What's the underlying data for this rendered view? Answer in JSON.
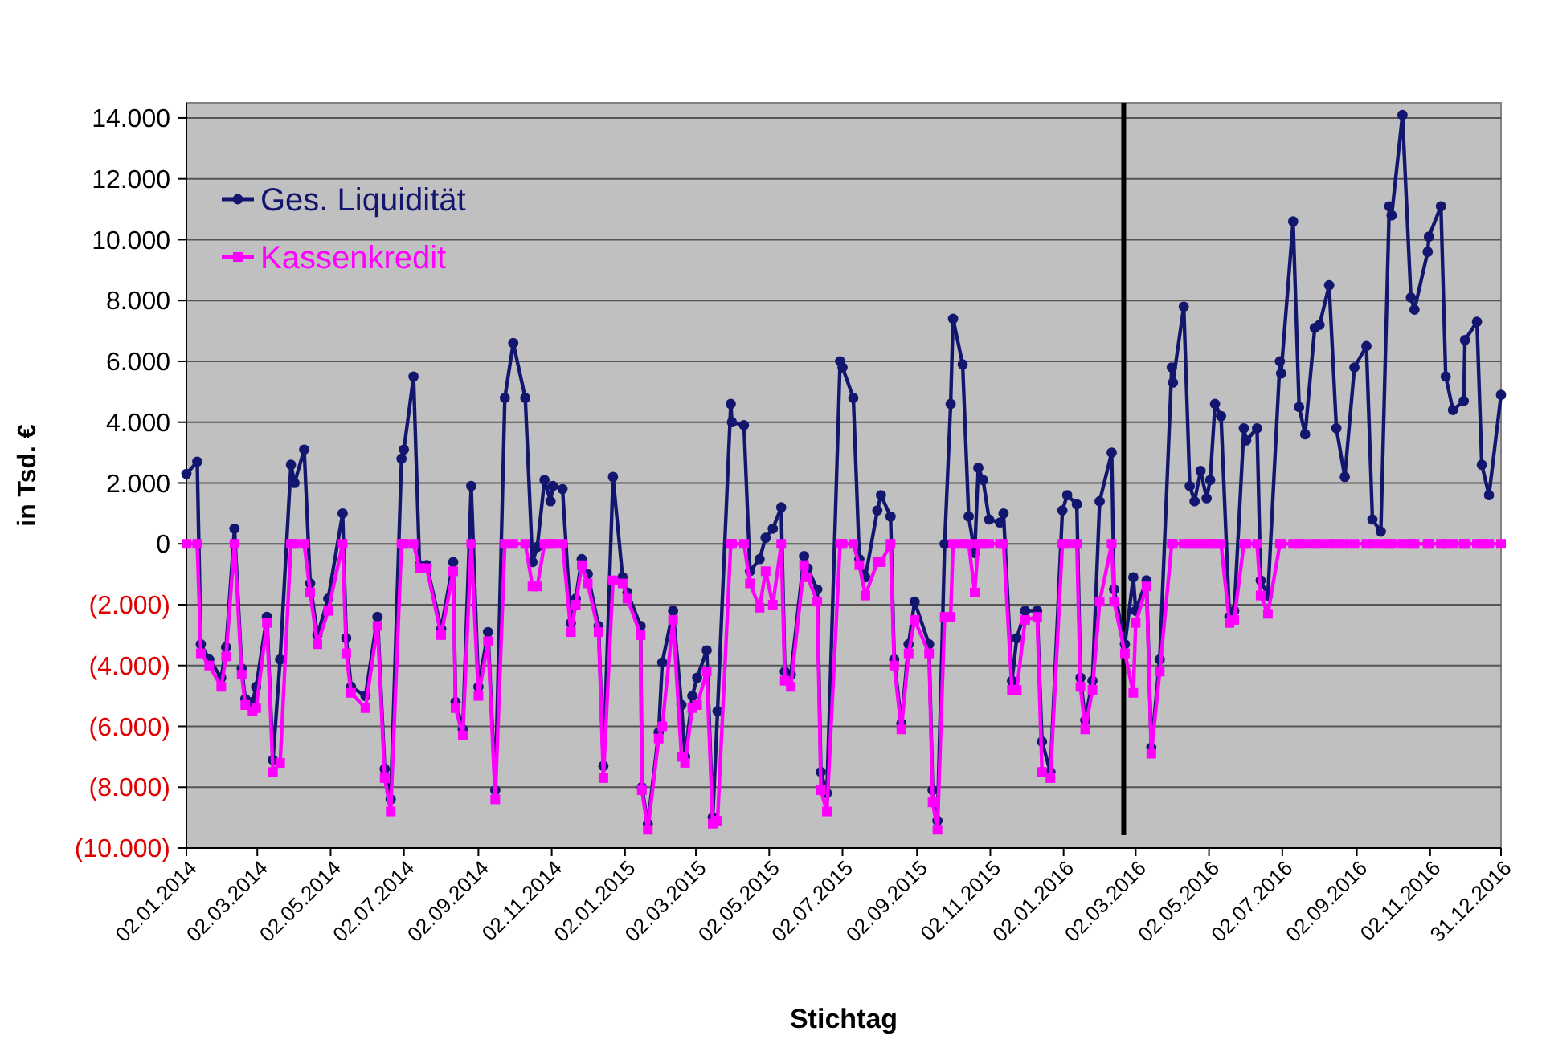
{
  "chart_data": {
    "type": "line",
    "xlabel": "Stichtag",
    "ylabel": "in Tsd. €",
    "xlim": [
      "2014-01-02",
      "2016-12-31"
    ],
    "ylim": [
      -10000,
      14500
    ],
    "xticks": [
      {
        "value": "2014-01-02",
        "label": "02.01.2014"
      },
      {
        "value": "2014-03-02",
        "label": "02.03.2014"
      },
      {
        "value": "2014-05-02",
        "label": "02.05.2014"
      },
      {
        "value": "2014-07-02",
        "label": "02.07.2014"
      },
      {
        "value": "2014-09-02",
        "label": "02.09.2014"
      },
      {
        "value": "2014-11-02",
        "label": "02.11.2014"
      },
      {
        "value": "2015-01-02",
        "label": "02.01.2015"
      },
      {
        "value": "2015-03-02",
        "label": "02.03.2015"
      },
      {
        "value": "2015-05-02",
        "label": "02.05.2015"
      },
      {
        "value": "2015-07-02",
        "label": "02.07.2015"
      },
      {
        "value": "2015-09-02",
        "label": "02.09.2015"
      },
      {
        "value": "2015-11-02",
        "label": "02.11.2015"
      },
      {
        "value": "2016-01-02",
        "label": "02.01.2016"
      },
      {
        "value": "2016-03-02",
        "label": "02.03.2016"
      },
      {
        "value": "2016-05-02",
        "label": "02.05.2016"
      },
      {
        "value": "2016-07-02",
        "label": "02.07.2016"
      },
      {
        "value": "2016-09-02",
        "label": "02.09.2016"
      },
      {
        "value": "2016-11-02",
        "label": "02.11.2016"
      },
      {
        "value": "2016-12-31",
        "label": "31.12.2016"
      }
    ],
    "yticks": [
      {
        "value": 14000,
        "label": "14.000"
      },
      {
        "value": 12000,
        "label": "12.000"
      },
      {
        "value": 10000,
        "label": "10.000"
      },
      {
        "value": 8000,
        "label": "8.000"
      },
      {
        "value": 6000,
        "label": "6.000"
      },
      {
        "value": 4000,
        "label": "4.000"
      },
      {
        "value": 2000,
        "label": "2.000"
      },
      0,
      {
        "value": -2000,
        "label": "(2.000)"
      },
      {
        "value": -4000,
        "label": "(4.000)"
      },
      {
        "value": -6000,
        "label": "(6.000)"
      },
      {
        "value": -8000,
        "label": "(8.000)"
      },
      {
        "value": -10000,
        "label": "(10.000)"
      }
    ],
    "grid": "y",
    "legend": "top left",
    "ref_lines": [
      {
        "axis": "x",
        "value": "2016-02-21",
        "color": "#000000"
      }
    ],
    "x": [
      "2014-01-02",
      "2014-01-11",
      "2014-01-14",
      "2014-01-21",
      "2014-01-31",
      "2014-02-04",
      "2014-02-11",
      "2014-02-17",
      "2014-02-20",
      "2014-02-26",
      "2014-03-01",
      "2014-03-10",
      "2014-03-15",
      "2014-03-21",
      "2014-03-30",
      "2014-04-02",
      "2014-04-10",
      "2014-04-15",
      "2014-04-21",
      "2014-04-30",
      "2014-05-12",
      "2014-05-15",
      "2014-05-19",
      "2014-05-31",
      "2014-06-10",
      "2014-06-16",
      "2014-06-21",
      "2014-06-30",
      "2014-07-02",
      "2014-07-10",
      "2014-07-15",
      "2014-07-21",
      "2014-08-02",
      "2014-08-12",
      "2014-08-14",
      "2014-08-20",
      "2014-08-27",
      "2014-09-02",
      "2014-09-10",
      "2014-09-16",
      "2014-09-24",
      "2014-10-01",
      "2014-10-11",
      "2014-10-17",
      "2014-10-21",
      "2014-10-27",
      "2014-11-01",
      "2014-11-03",
      "2014-11-11",
      "2014-11-18",
      "2014-11-22",
      "2014-11-27",
      "2014-12-02",
      "2014-12-11",
      "2014-12-15",
      "2014-12-23",
      "2014-12-31",
      "2015-01-04",
      "2015-01-15",
      "2015-01-16",
      "2015-01-21",
      "2015-01-30",
      "2015-02-02",
      "2015-02-11",
      "2015-02-18",
      "2015-02-21",
      "2015-02-27",
      "2015-03-03",
      "2015-03-11",
      "2015-03-16",
      "2015-03-20",
      "2015-03-31",
      "2015-04-01",
      "2015-04-11",
      "2015-04-16",
      "2015-04-24",
      "2015-04-29",
      "2015-05-05",
      "2015-05-12",
      "2015-05-15",
      "2015-05-20",
      "2015-05-31",
      "2015-06-03",
      "2015-06-11",
      "2015-06-14",
      "2015-06-19",
      "2015-06-30",
      "2015-07-02",
      "2015-07-11",
      "2015-07-16",
      "2015-07-21",
      "2015-07-31",
      "2015-08-03",
      "2015-08-11",
      "2015-08-14",
      "2015-08-20",
      "2015-08-26",
      "2015-08-31",
      "2015-09-12",
      "2015-09-15",
      "2015-09-19",
      "2015-09-25",
      "2015-09-30",
      "2015-10-02",
      "2015-10-10",
      "2015-10-15",
      "2015-10-20",
      "2015-10-23",
      "2015-10-27",
      "2015-11-01",
      "2015-11-10",
      "2015-11-13",
      "2015-11-20",
      "2015-11-24",
      "2015-12-01",
      "2015-12-11",
      "2015-12-15",
      "2015-12-22",
      "2016-01-01",
      "2016-01-05",
      "2016-01-13",
      "2016-01-16",
      "2016-01-20",
      "2016-01-26",
      "2016-02-01",
      "2016-02-11",
      "2016-02-13",
      "2016-02-22",
      "2016-02-29",
      "2016-03-02",
      "2016-03-11",
      "2016-03-15",
      "2016-03-22",
      "2016-04-01",
      "2016-04-02",
      "2016-04-11",
      "2016-04-16",
      "2016-04-20",
      "2016-04-25",
      "2016-04-30",
      "2016-05-03",
      "2016-05-07",
      "2016-05-12",
      "2016-05-19",
      "2016-05-23",
      "2016-05-31",
      "2016-06-02",
      "2016-06-11",
      "2016-06-14",
      "2016-06-20",
      "2016-06-30",
      "2016-07-01",
      "2016-07-11",
      "2016-07-16",
      "2016-07-21",
      "2016-07-29",
      "2016-08-02",
      "2016-08-10",
      "2016-08-16",
      "2016-08-23",
      "2016-08-31",
      "2016-09-10",
      "2016-09-15",
      "2016-09-22",
      "2016-09-29",
      "2016-10-01",
      "2016-10-10",
      "2016-10-17",
      "2016-10-20",
      "2016-10-31",
      "2016-11-01",
      "2016-11-11",
      "2016-11-15",
      "2016-11-21",
      "2016-11-30",
      "2016-12-01",
      "2016-12-11",
      "2016-12-15",
      "2016-12-21",
      "2016-12-31"
    ],
    "series": [
      {
        "name": "Ges. Liquidität",
        "color": "#13166e",
        "marker": "circle",
        "values": [
          2300,
          2700,
          -3300,
          -3800,
          -4400,
          -3400,
          500,
          -4100,
          -5100,
          -5200,
          -4700,
          -2400,
          -7100,
          -3800,
          2600,
          2000,
          3100,
          -1300,
          -3000,
          -1800,
          1000,
          -3100,
          -4700,
          -5000,
          -2400,
          -7400,
          -8400,
          2800,
          3100,
          5500,
          -700,
          -700,
          -2800,
          -600,
          -5200,
          -6100,
          1900,
          -4700,
          -2900,
          -8100,
          4800,
          6600,
          4800,
          -600,
          -100,
          2100,
          1400,
          1900,
          1800,
          -2600,
          -1800,
          -500,
          -1000,
          -2700,
          -7300,
          2200,
          -1100,
          -1600,
          -2700,
          -8000,
          -9200,
          -6200,
          -3900,
          -2200,
          -5300,
          -7000,
          -5000,
          -4400,
          -3500,
          -9000,
          -5500,
          4600,
          4000,
          3900,
          -900,
          -500,
          200,
          500,
          1200,
          -4200,
          -4300,
          -400,
          -800,
          -1500,
          -7500,
          -8200,
          6000,
          5800,
          4800,
          -500,
          -1100,
          1100,
          1600,
          900,
          -3800,
          -5900,
          -3300,
          -1900,
          -3300,
          -8100,
          -9100,
          0,
          4600,
          7400,
          5900,
          900,
          -300,
          2500,
          2100,
          800,
          700,
          1000,
          -4500,
          -3100,
          -2200,
          -2200,
          -6500,
          -7500,
          1100,
          1600,
          1300,
          -4400,
          -5800,
          -4500,
          1400,
          3000,
          -1500,
          -3300,
          -1100,
          -2200,
          -1200,
          -6700,
          -3800,
          5800,
          5300,
          7800,
          1900,
          1400,
          2400,
          1500,
          2100,
          4600,
          4200,
          -2400,
          -2200,
          3800,
          3400,
          3800,
          -1200,
          -1700,
          6000,
          5600,
          10600,
          4500,
          3600,
          7100,
          7200,
          8500,
          3800,
          2200,
          5800,
          6500,
          800,
          400,
          11100,
          10800,
          14100,
          8100,
          7700,
          9600,
          10100,
          11100,
          5500,
          4400,
          4700,
          6700,
          7300,
          2600,
          1600,
          4900
        ]
      },
      {
        "name": "Kassenkredit",
        "color": "#ff00ff",
        "marker": "square",
        "values": [
          0,
          0,
          -3600,
          -4000,
          -4700,
          -3700,
          0,
          -4300,
          -5300,
          -5500,
          -5400,
          -2600,
          -7500,
          -7200,
          0,
          0,
          0,
          -1600,
          -3300,
          -2200,
          0,
          -3600,
          -4900,
          -5400,
          -2700,
          -7700,
          -8800,
          0,
          0,
          0,
          -800,
          -800,
          -3000,
          -900,
          -5400,
          -6300,
          0,
          -5000,
          -3200,
          -8400,
          0,
          0,
          0,
          -1400,
          -1400,
          0,
          0,
          0,
          0,
          -2900,
          -2000,
          -700,
          -1300,
          -2900,
          -7700,
          -1200,
          -1300,
          -1800,
          -3000,
          -8100,
          -9400,
          -6400,
          -6000,
          -2500,
          -7000,
          -7200,
          -5400,
          -5300,
          -4200,
          -9200,
          -9100,
          0,
          0,
          0,
          -1300,
          -2100,
          -900,
          -2000,
          0,
          -4500,
          -4700,
          -700,
          -1100,
          -1900,
          -8100,
          -8800,
          0,
          0,
          0,
          -700,
          -1700,
          -600,
          -600,
          0,
          -4000,
          -6100,
          -3600,
          -2500,
          -3600,
          -8500,
          -9400,
          -2400,
          -2400,
          0,
          0,
          0,
          -1600,
          0,
          0,
          0,
          0,
          0,
          -4800,
          -4800,
          -2500,
          -2400,
          -7500,
          -7700,
          0,
          0,
          0,
          -4700,
          -6100,
          -4800,
          -1900,
          0,
          -1900,
          -3600,
          -4900,
          -2600,
          -1400,
          -6900,
          -4200,
          0,
          0,
          0,
          0,
          0,
          0,
          0,
          0,
          0,
          0,
          -2600,
          -2500,
          0,
          0,
          0,
          -1700,
          -2300,
          0,
          0,
          0,
          0,
          0,
          0,
          0,
          0,
          0,
          0,
          0,
          0,
          0,
          0,
          0,
          0,
          0,
          0,
          0,
          0,
          0,
          0,
          0,
          0,
          0,
          0,
          0,
          0,
          0,
          0
        ]
      }
    ]
  }
}
